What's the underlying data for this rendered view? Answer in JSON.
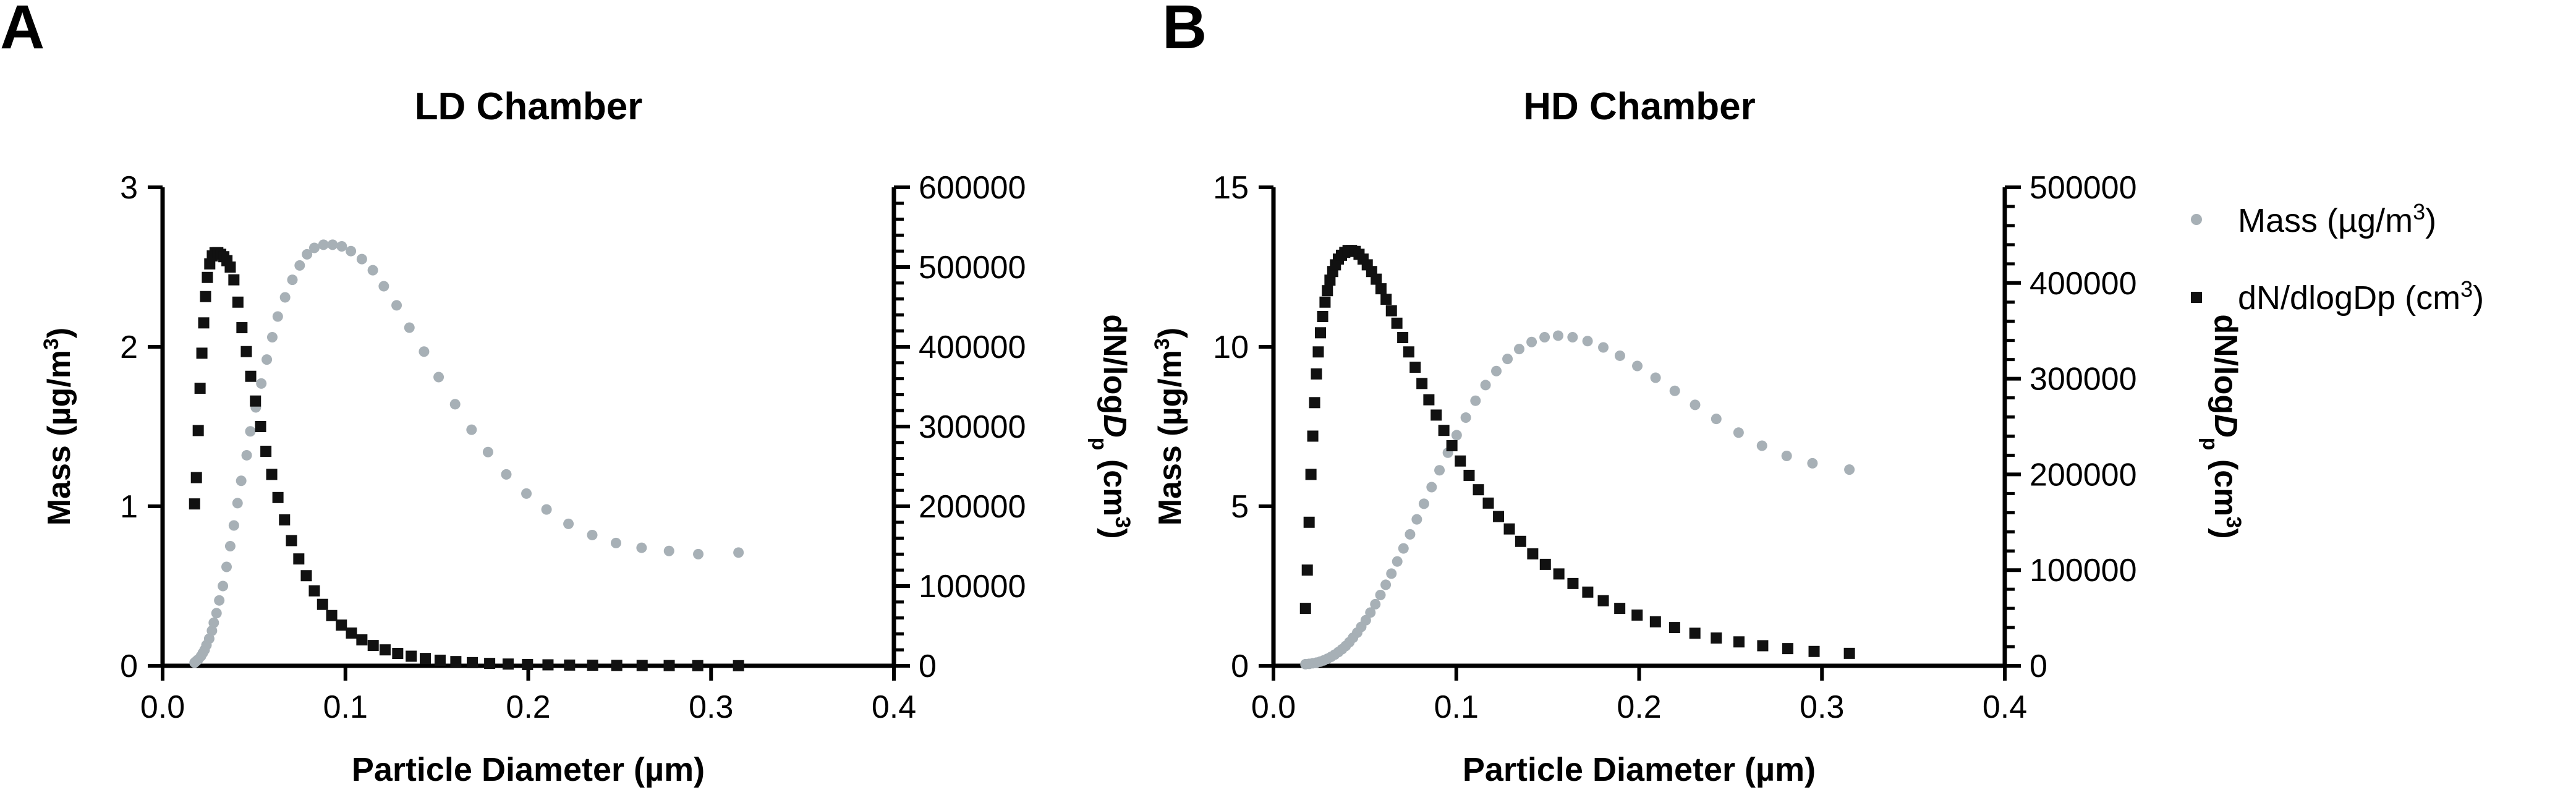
{
  "panels": [
    {
      "letter": "A",
      "title": "LD Chamber",
      "chart_data": {
        "type": "scatter",
        "title": "LD Chamber",
        "xlabel": "Particle Diameter (µm)",
        "xlim": [
          0.0,
          0.4
        ],
        "x_ticks": [
          0.0,
          0.1,
          0.2,
          0.3,
          0.4
        ],
        "x_tick_labels": [
          "0.0",
          "0.1",
          "0.2",
          "0.3",
          "0.4"
        ],
        "left_axis": {
          "label_pre": "Mass (µg/m",
          "label_sup": "3",
          "label_post": ")",
          "ylim": [
            0,
            3
          ],
          "ticks": [
            0,
            1,
            2,
            3
          ],
          "tick_labels": [
            "0",
            "1",
            "2",
            "3"
          ],
          "minor_per_major": 5
        },
        "right_axis": {
          "label_pre": "dN/log",
          "label_italic": "D",
          "label_sub": "p",
          "label_post": " (cm",
          "label_sup": "3",
          "label_end": ")",
          "ylim": [
            0,
            600000
          ],
          "ticks": [
            0,
            100000,
            200000,
            300000,
            400000,
            500000,
            600000
          ],
          "tick_labels": [
            "0",
            "100000",
            "200000",
            "300000",
            "400000",
            "500000",
            "600000"
          ],
          "minor_per_major": 5
        },
        "series": [
          {
            "name": "Mass (µg/m³)",
            "axis": "left",
            "marker": "circle",
            "color": "#a7b0b6",
            "x": [
              0.0175,
              0.0185,
              0.0195,
              0.021,
              0.022,
              0.023,
              0.024,
              0.0255,
              0.027,
              0.028,
              0.0295,
              0.031,
              0.033,
              0.035,
              0.037,
              0.039,
              0.041,
              0.043,
              0.046,
              0.048,
              0.051,
              0.054,
              0.057,
              0.06,
              0.063,
              0.067,
              0.071,
              0.075,
              0.079,
              0.083,
              0.088,
              0.093,
              0.098,
              0.103,
              0.109,
              0.115,
              0.121,
              0.128,
              0.135,
              0.143,
              0.151,
              0.16,
              0.169,
              0.178,
              0.188,
              0.199,
              0.21,
              0.222,
              0.235,
              0.248,
              0.262,
              0.277,
              0.293,
              0.315
            ],
            "y": [
              0.02,
              0.03,
              0.04,
              0.06,
              0.08,
              0.1,
              0.13,
              0.17,
              0.22,
              0.27,
              0.33,
              0.41,
              0.5,
              0.62,
              0.75,
              0.88,
              1.02,
              1.16,
              1.32,
              1.47,
              1.62,
              1.77,
              1.92,
              2.06,
              2.19,
              2.31,
              2.42,
              2.51,
              2.58,
              2.62,
              2.64,
              2.64,
              2.63,
              2.6,
              2.55,
              2.48,
              2.38,
              2.26,
              2.12,
              1.97,
              1.81,
              1.64,
              1.48,
              1.34,
              1.2,
              1.08,
              0.98,
              0.89,
              0.82,
              0.77,
              0.74,
              0.72,
              0.7,
              0.71
            ]
          },
          {
            "name": "dN/dlogDp (cm³)",
            "axis": "right",
            "marker": "square",
            "color": "#111111",
            "x": [
              0.0175,
              0.0185,
              0.0195,
              0.0205,
              0.0215,
              0.0225,
              0.0235,
              0.0245,
              0.0258,
              0.0272,
              0.0287,
              0.0302,
              0.0318,
              0.0335,
              0.0352,
              0.037,
              0.039,
              0.0412,
              0.0434,
              0.0458,
              0.0482,
              0.0508,
              0.0536,
              0.0565,
              0.0597,
              0.0631,
              0.0667,
              0.0705,
              0.0745,
              0.0786,
              0.083,
              0.0875,
              0.0925,
              0.0978,
              0.1033,
              0.109,
              0.1152,
              0.1217,
              0.1286,
              0.136,
              0.1437,
              0.1518,
              0.1604,
              0.1694,
              0.1789,
              0.189,
              0.1996,
              0.2108,
              0.2226,
              0.2352,
              0.2484,
              0.2623,
              0.2771,
              0.2927,
              0.315
            ],
            "y": [
              203000,
              236000,
              295000,
              348000,
              392000,
              430000,
              463000,
              487000,
              504000,
              514000,
              518000,
              518000,
              516000,
              513000,
              508000,
              500000,
              484000,
              456000,
              424000,
              394000,
              363000,
              332000,
              300000,
              269000,
              240000,
              211000,
              183000,
              157000,
              134000,
              113000,
              94000,
              77000,
              63000,
              51000,
              41000,
              32500,
              25500,
              20000,
              15500,
              12000,
              9200,
              7000,
              5300,
              4000,
              3000,
              2200,
              1600,
              1200,
              900,
              700,
              500,
              400,
              300,
              200,
              150
            ]
          }
        ]
      }
    },
    {
      "letter": "B",
      "title": "HD Chamber",
      "chart_data": {
        "type": "scatter",
        "title": "HD Chamber",
        "xlabel": "Particle Diameter (µm)",
        "xlim": [
          0.0,
          0.4
        ],
        "x_ticks": [
          0.0,
          0.1,
          0.2,
          0.3,
          0.4
        ],
        "x_tick_labels": [
          "0.0",
          "0.1",
          "0.2",
          "0.3",
          "0.4"
        ],
        "left_axis": {
          "label_pre": "Mass (µg/m",
          "label_sup": "3",
          "label_post": ")",
          "ylim": [
            0,
            15
          ],
          "ticks": [
            0,
            5,
            10,
            15
          ],
          "tick_labels": [
            "0",
            "5",
            "10",
            "15"
          ],
          "minor_per_major": 5
        },
        "right_axis": {
          "label_pre": "dN/log",
          "label_italic": "D",
          "label_sub": "p",
          "label_post": " (cm",
          "label_sup": "3",
          "label_end": ")",
          "ylim": [
            0,
            500000
          ],
          "ticks": [
            0,
            100000,
            200000,
            300000,
            400000,
            500000
          ],
          "tick_labels": [
            "0",
            "100000",
            "200000",
            "300000",
            "400000",
            "500000"
          ],
          "minor_per_major": 5
        },
        "series": [
          {
            "name": "Mass (µg/m³)",
            "axis": "left",
            "marker": "circle",
            "color": "#a7b0b6",
            "x": [
              0.0175,
              0.0195,
              0.0215,
              0.0235,
              0.0255,
              0.0275,
              0.0295,
              0.0315,
              0.0335,
              0.0355,
              0.0375,
              0.0395,
              0.0415,
              0.0435,
              0.0458,
              0.048,
              0.0505,
              0.053,
              0.0557,
              0.0585,
              0.0614,
              0.0645,
              0.0677,
              0.0711,
              0.0747,
              0.0784,
              0.0823,
              0.0865,
              0.0908,
              0.0954,
              0.1002,
              0.1052,
              0.1105,
              0.116,
              0.1219,
              0.128,
              0.1344,
              0.1412,
              0.1483,
              0.1557,
              0.1636,
              0.1718,
              0.1804,
              0.1895,
              0.199,
              0.209,
              0.2195,
              0.2306,
              0.2422,
              0.2544,
              0.2672,
              0.2807,
              0.2948,
              0.315
            ],
            "y": [
              0.05,
              0.06,
              0.08,
              0.1,
              0.13,
              0.17,
              0.22,
              0.28,
              0.35,
              0.43,
              0.52,
              0.62,
              0.74,
              0.88,
              1.04,
              1.22,
              1.43,
              1.67,
              1.93,
              2.22,
              2.54,
              2.89,
              3.27,
              3.68,
              4.12,
              4.59,
              5.08,
              5.6,
              6.13,
              6.68,
              7.23,
              7.78,
              8.31,
              8.8,
              9.24,
              9.62,
              9.93,
              10.15,
              10.3,
              10.35,
              10.3,
              10.18,
              9.98,
              9.72,
              9.4,
              9.03,
              8.62,
              8.18,
              7.74,
              7.31,
              6.9,
              6.58,
              6.35,
              6.15
            ]
          },
          {
            "name": "dN/dlogDp (cm³)",
            "axis": "right",
            "marker": "square",
            "color": "#111111",
            "x": [
              0.0175,
              0.0185,
              0.0195,
              0.0205,
              0.0215,
              0.0225,
              0.0235,
              0.0245,
              0.0257,
              0.0269,
              0.0282,
              0.0295,
              0.0309,
              0.0324,
              0.0339,
              0.0355,
              0.0372,
              0.039,
              0.0408,
              0.0427,
              0.0447,
              0.0468,
              0.049,
              0.0513,
              0.0537,
              0.0562,
              0.0588,
              0.0616,
              0.0645,
              0.0675,
              0.0707,
              0.074,
              0.0775,
              0.0812,
              0.085,
              0.089,
              0.0932,
              0.0976,
              0.1022,
              0.107,
              0.1121,
              0.1175,
              0.1231,
              0.129,
              0.1352,
              0.1418,
              0.1487,
              0.1561,
              0.1638,
              0.1719,
              0.1804,
              0.1894,
              0.1989,
              0.2089,
              0.2194,
              0.2305,
              0.2422,
              0.2546,
              0.2676,
              0.2813,
              0.2957,
              0.315
            ],
            "y": [
              60000,
              100000,
              150000,
              200000,
              240000,
              275000,
              305000,
              328000,
              348000,
              365000,
              380000,
              392000,
              403000,
              412000,
              419000,
              425000,
              429000,
              432000,
              434000,
              434000,
              433000,
              430000,
              425000,
              419000,
              412000,
              404000,
              394000,
              383000,
              371000,
              358000,
              343000,
              328000,
              312000,
              295000,
              278000,
              262000,
              246000,
              230000,
              214000,
              199000,
              184000,
              170000,
              156000,
              143000,
              130000,
              117000,
              106000,
              96000,
              86000,
              77000,
              68000,
              60000,
              53000,
              46000,
              40000,
              34000,
              29000,
              25000,
              21000,
              18000,
              15000,
              13000
            ]
          }
        ]
      }
    }
  ],
  "legend": {
    "mass_pre": "Mass (µg/m",
    "mass_sup": "3",
    "mass_post": ")",
    "dn_pre": "dN/dlogDp (cm",
    "dn_sup": "3",
    "dn_post": ")"
  }
}
